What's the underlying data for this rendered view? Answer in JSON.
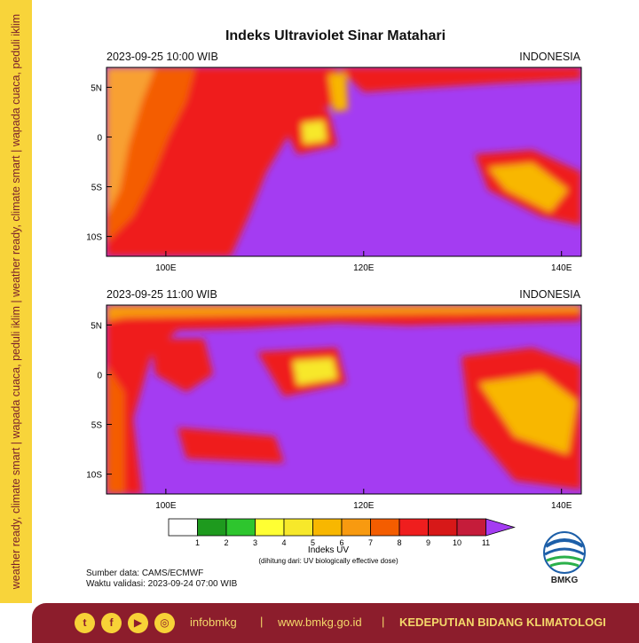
{
  "side_banner": "weather ready, climate smart  |  wapada cuaca, peduli iklim  |  weather ready, climate smart  |  wapada cuaca, peduli iklim",
  "title": "Indeks Ultraviolet Sinar Matahari",
  "panels": [
    {
      "date": "2023-09-25  10:00 WIB",
      "region": "INDONESIA"
    },
    {
      "date": "2023-09-25  11:00 WIB",
      "region": "INDONESIA"
    }
  ],
  "map_axes": {
    "lon_ticks": [
      "100E",
      "120E",
      "140E"
    ],
    "lon_values": [
      100,
      120,
      140
    ],
    "lat_ticks": [
      "5N",
      "0",
      "5S",
      "10S"
    ],
    "lat_values": [
      5,
      0,
      -5,
      -10
    ],
    "lon_range": [
      94,
      142
    ],
    "lat_range": [
      -12,
      7
    ]
  },
  "legend": {
    "title": "Indeks UV",
    "subtitle": "(dihitung dari: UV biologically effective dose)",
    "labels": [
      "1",
      "2",
      "3",
      "4",
      "5",
      "6",
      "7",
      "8",
      "9",
      "10",
      "11"
    ],
    "colors": [
      "#ffffff",
      "#1e9a1e",
      "#2ec52e",
      "#ffff33",
      "#f7e82a",
      "#f8b700",
      "#f89a10",
      "#f45d00",
      "#ef1e1e",
      "#d71818",
      "#c51c3a",
      "#a43cf2"
    ]
  },
  "source_note": "Sumber data: CAMS/ECMWF",
  "valid_note": "Waktu validasi: 2023-09-24 07:00 WIB",
  "logo_label": "BMKG",
  "footer": {
    "social_icons": [
      "twitter-icon",
      "facebook-icon",
      "youtube-icon",
      "instagram-icon"
    ],
    "handle": "infobmkg",
    "separator": "|",
    "website": "www.bmkg.go.id",
    "department": "KEDEPUTIAN BIDANG KLIMATOLOGI"
  }
}
